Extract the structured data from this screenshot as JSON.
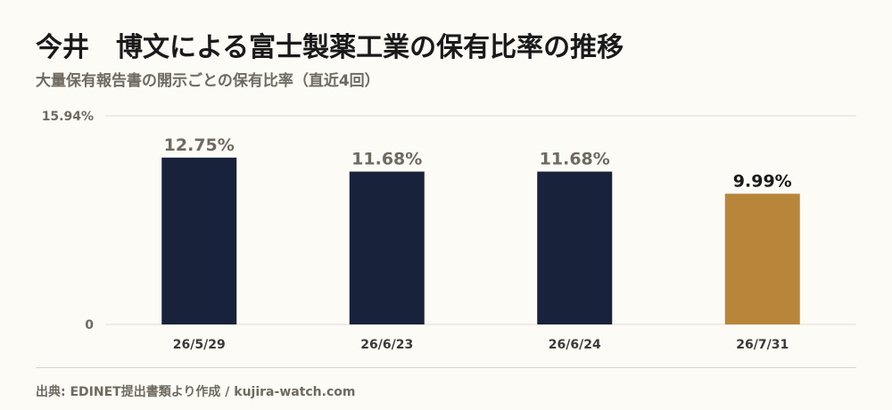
{
  "header": {
    "title": "今井　博文による富士製薬工業の保有比率の推移",
    "subtitle": "大量保有報告書の開示ごとの保有比率（直近4回）"
  },
  "footer": {
    "source": "出典: EDINET提出書類より作成 / kujira-watch.com"
  },
  "colors": {
    "bar": "#18223a",
    "highlight": "#b8863b",
    "grid": "#e3dccb",
    "muted_text": "#6f6a60",
    "dark_text": "#1a1a1a"
  },
  "chart_data": {
    "type": "bar",
    "title": "今井　博文による富士製薬工業の保有比率の推移",
    "subtitle": "大量保有報告書の開示ごとの保有比率（直近4回）",
    "categories": [
      "26/5/29",
      "26/6/23",
      "26/6/24",
      "26/7/31"
    ],
    "values": [
      12.75,
      11.68,
      11.68,
      9.99
    ],
    "value_labels": [
      "12.75%",
      "11.68%",
      "11.68%",
      "9.99%"
    ],
    "highlight_index": 3,
    "ylim": [
      0,
      15.94
    ],
    "y_tick_labels": [
      "0",
      "15.94%"
    ],
    "xlabel": "",
    "ylabel": "",
    "grid": true,
    "legend": "none"
  }
}
